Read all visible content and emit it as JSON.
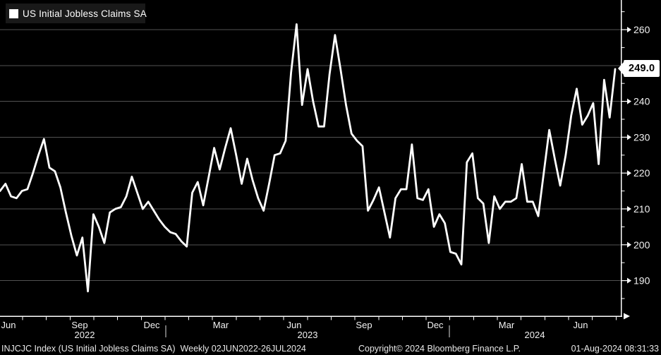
{
  "legend": {
    "label": "US Initial Jobless Claims SA",
    "swatch_color": "#ffffff"
  },
  "last_value_label": "249.0",
  "status_bar": {
    "left": "INJCJC Index (US Initial Jobless Claims SA)  Weekly 02JUN2022-26JUL2024",
    "center": "Copyright© 2024 Bloomberg Finance L.P.",
    "right": "01-Aug-2024 08:31:33"
  },
  "colors": {
    "background": "#000000",
    "line": "#ffffff",
    "grid": "#525252",
    "axis": "#ffffff",
    "tick_label": "#f2f2f2",
    "legend_bg": "#191919",
    "value_box_bg": "#ffffff",
    "value_box_text": "#000000"
  },
  "chart_data": {
    "type": "line",
    "title": "US Initial Jobless Claims SA",
    "security": "INJCJC Index",
    "frequency": "Weekly",
    "range": "02JUN2022-26JUL2024",
    "grid": "horizontal",
    "y_axis_side": "right",
    "ylim": [
      180,
      265
    ],
    "y_ticks": [
      190,
      200,
      210,
      220,
      230,
      240,
      250,
      260
    ],
    "x_tick_labels": [
      "Jun",
      "Sep",
      "Dec",
      "Mar",
      "Jun",
      "Sep",
      "Dec",
      "Mar",
      "Jun"
    ],
    "year_labels": [
      "2022",
      "2023",
      "2024"
    ],
    "last_value": 249.0,
    "series": [
      {
        "name": "US Initial Jobless Claims SA",
        "color": "#ffffff",
        "values": [
          215,
          217,
          213.5,
          213,
          215,
          215.5,
          220,
          225,
          229.5,
          221.5,
          220.5,
          216,
          209,
          202.5,
          197,
          202,
          187,
          208.5,
          205,
          200.5,
          209,
          210,
          210.5,
          213.5,
          219,
          214.5,
          210,
          212,
          209.5,
          207,
          205,
          203.5,
          203,
          201,
          199.5,
          214.5,
          217.5,
          211,
          219,
          227,
          221,
          227,
          232.5,
          225,
          217,
          224,
          218,
          213,
          209.5,
          217,
          225,
          225.5,
          229,
          248,
          261.5,
          239,
          249,
          240,
          233,
          233,
          247.5,
          258.5,
          249,
          239,
          231,
          229,
          227.5,
          209.5,
          212.5,
          216,
          209,
          202,
          213,
          215.5,
          215.5,
          228,
          213,
          212.5,
          215.5,
          205,
          208.5,
          206,
          198,
          197.5,
          194.5,
          223,
          225.5,
          213,
          211.5,
          200.5,
          213.5,
          210,
          212,
          212,
          213,
          222.5,
          212,
          212,
          208,
          220,
          232,
          224,
          216.5,
          225,
          236,
          243.5,
          233.5,
          236,
          239.5,
          222.5,
          246,
          235.5,
          249
        ]
      }
    ]
  }
}
